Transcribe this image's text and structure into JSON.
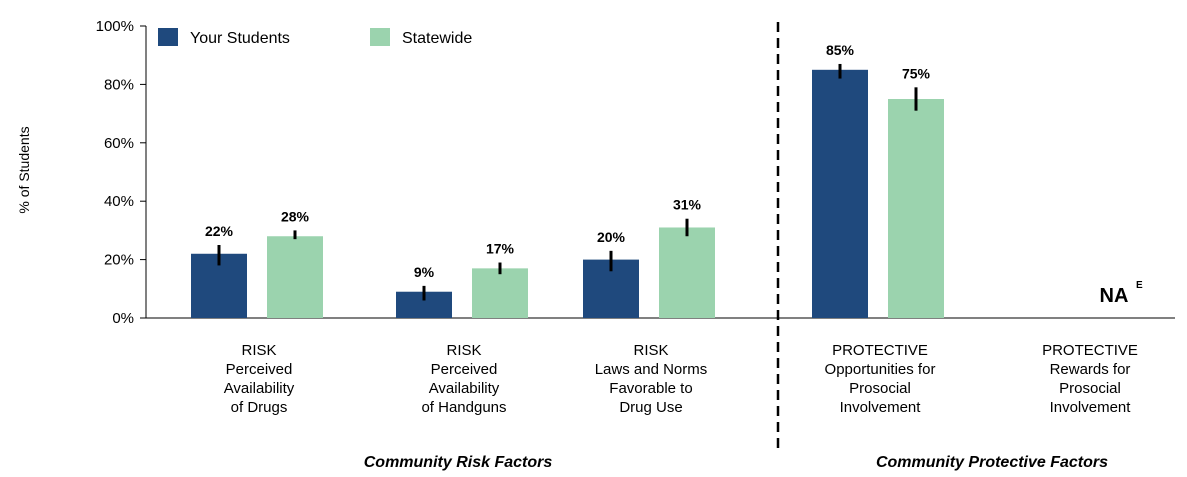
{
  "chart_data": {
    "type": "bar",
    "ylabel": "% of Students",
    "ylim": [
      0,
      100
    ],
    "yticks": [
      "0%",
      "20%",
      "40%",
      "60%",
      "80%",
      "100%"
    ],
    "grid": false,
    "legend_position": "top-left",
    "colors": {
      "your_students": "#1f497d",
      "statewide": "#9bd3ae",
      "error_bar": "#000000"
    },
    "categories": [
      {
        "lines": [
          "RISK",
          "Perceived",
          "Availability",
          "of Drugs"
        ],
        "group": "risk"
      },
      {
        "lines": [
          "RISK",
          "Perceived",
          "Availability",
          "of Handguns"
        ],
        "group": "risk"
      },
      {
        "lines": [
          "RISK",
          "Laws and Norms",
          "Favorable to",
          "Drug Use"
        ],
        "group": "risk"
      },
      {
        "lines": [
          "PROTECTIVE",
          "Opportunities for",
          "Prosocial",
          "Involvement"
        ],
        "group": "protective"
      },
      {
        "lines": [
          "PROTECTIVE",
          "Rewards for",
          "Prosocial",
          "Involvement"
        ],
        "group": "protective"
      }
    ],
    "series": [
      {
        "name": "Your Students",
        "color": "#1f497d",
        "values": [
          22,
          9,
          20,
          85,
          null
        ],
        "labels": [
          "22%",
          "9%",
          "20%",
          "85%",
          ""
        ],
        "error_low": [
          18,
          6,
          16,
          82,
          null
        ],
        "error_high": [
          25,
          11,
          23,
          87,
          null
        ]
      },
      {
        "name": "Statewide",
        "color": "#9bd3ae",
        "values": [
          28,
          17,
          31,
          75,
          null
        ],
        "labels": [
          "28%",
          "17%",
          "31%",
          "75%",
          ""
        ],
        "error_low": [
          27,
          15,
          28,
          71,
          null
        ],
        "error_high": [
          30,
          19,
          34,
          79,
          null
        ]
      }
    ],
    "na_label": {
      "text": "NA",
      "superscript": "E",
      "category_index": 4
    },
    "group_labels": {
      "risk": "Community Risk Factors",
      "protective": "Community Protective Factors"
    }
  }
}
